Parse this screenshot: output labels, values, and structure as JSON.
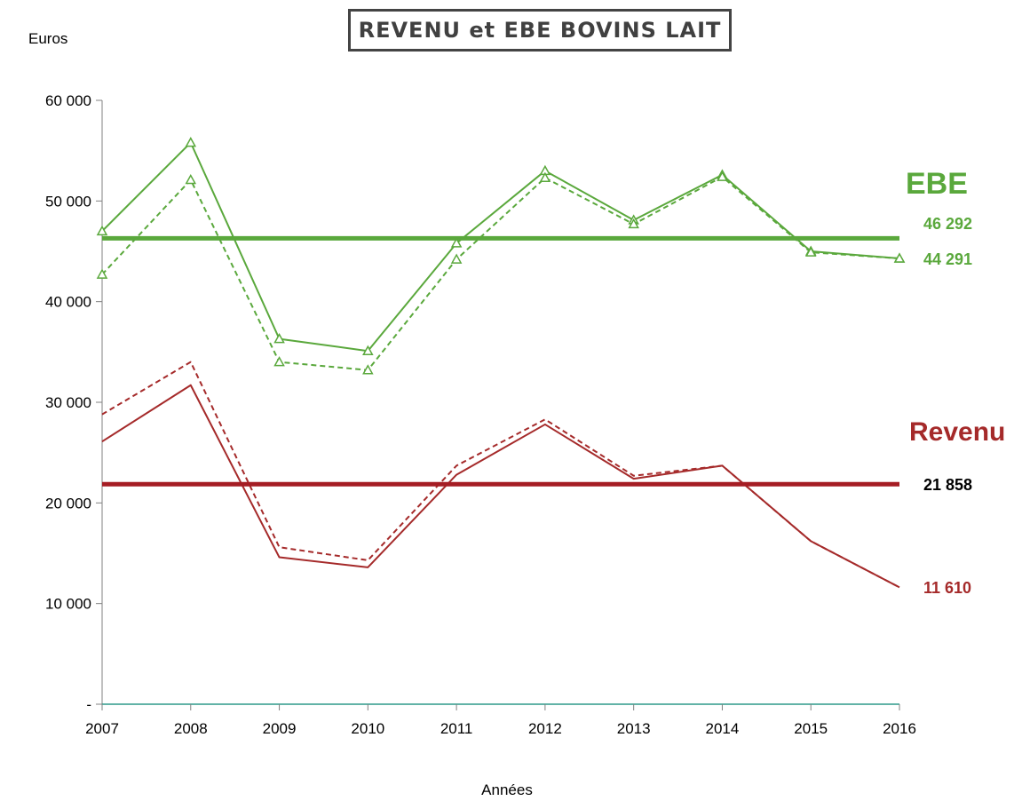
{
  "chart_data": {
    "type": "line",
    "title": "REVENU et EBE BOVINS LAIT",
    "ylabel": "Euros",
    "xlabel": "Années",
    "x": [
      "2007",
      "2008",
      "2009",
      "2010",
      "2011",
      "2012",
      "2013",
      "2014",
      "2015",
      "2016"
    ],
    "ylim": [
      0,
      60000
    ],
    "yticks": [
      0,
      10000,
      20000,
      30000,
      40000,
      50000,
      60000
    ],
    "ytick_labels": [
      "-",
      "10 000",
      "20 000",
      "30 000",
      "40 000",
      "50 000",
      "60 000"
    ],
    "grid": false,
    "legend": "none",
    "series": [
      {
        "group": "EBE",
        "style": "solid",
        "marker": "triangle",
        "color": "#5aa83c",
        "values": [
          47000,
          55800,
          36300,
          35100,
          45800,
          53000,
          48100,
          52600,
          45000,
          44291
        ]
      },
      {
        "group": "EBE",
        "style": "dashed",
        "marker": "triangle",
        "color": "#5aa83c",
        "values": [
          42700,
          52100,
          34000,
          33200,
          44200,
          52300,
          47700,
          52400,
          44900,
          44291
        ]
      },
      {
        "group": "EBE",
        "style": "mean-line",
        "color": "#5aa83c",
        "value": 46292
      },
      {
        "group": "Revenu",
        "style": "solid",
        "color": "#a52a2a",
        "values": [
          26100,
          31700,
          14600,
          13600,
          22800,
          27800,
          22400,
          23700,
          16200,
          11610
        ]
      },
      {
        "group": "Revenu",
        "style": "dashed",
        "color": "#a52a2a",
        "values": [
          28800,
          34000,
          15600,
          14300,
          23700,
          28300,
          22700,
          23700,
          16200,
          11610
        ]
      },
      {
        "group": "Revenu",
        "style": "mean-line",
        "color": "#a51d24",
        "value": 21858
      }
    ],
    "annotations": {
      "ebe_label": "EBE",
      "revenu_label": "Revenu",
      "ebe_mean": "46 292",
      "ebe_last": "44 291",
      "revenu_mean": "21 858",
      "revenu_last": "11 610"
    },
    "colors": {
      "ebe": "#5aa83c",
      "revenu": "#a52a2a",
      "revenu_mean": "#a51d24",
      "axis": "#808080",
      "x_axis": "#2e9a8a",
      "black_label": "#000000"
    }
  }
}
